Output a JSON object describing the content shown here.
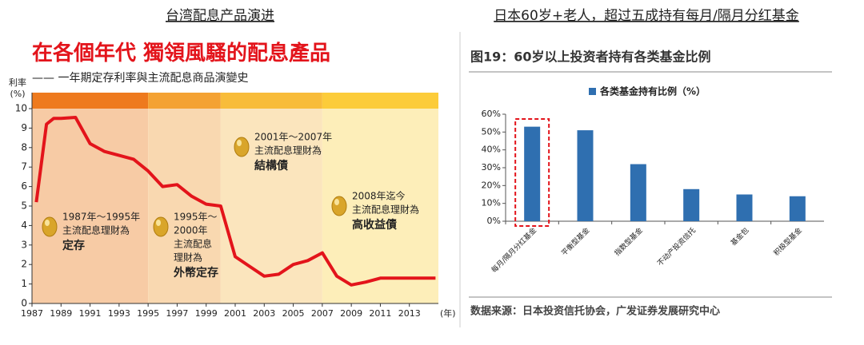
{
  "chart_data": [
    {
      "type": "line",
      "heading": "台湾配息产品演进",
      "title": "在各個年代  獨領風騷的配息產品",
      "subtitle": "—— 一年期定存利率與主流配息商品演變史",
      "ylabel": [
        "利率",
        "(%)"
      ],
      "xlabel": "(年)",
      "x": [
        1987.3,
        1988,
        1988.5,
        1989,
        1990,
        1991,
        1992,
        1993,
        1994,
        1995,
        1996,
        1997,
        1998,
        1999,
        2000,
        2001,
        2002,
        2003,
        2004,
        2005,
        2006,
        2007,
        2008,
        2009,
        2010,
        2011,
        2012,
        2013,
        2014.8
      ],
      "values": [
        5.2,
        9.2,
        9.5,
        9.5,
        9.55,
        8.2,
        7.8,
        7.6,
        7.4,
        6.8,
        6.0,
        6.1,
        5.5,
        5.1,
        5.0,
        2.4,
        1.9,
        1.4,
        1.5,
        2.0,
        2.2,
        2.6,
        1.4,
        0.95,
        1.1,
        1.3,
        1.3,
        1.3,
        1.3
      ],
      "color": "#e3141b",
      "xlim": [
        1987,
        2015
      ],
      "ylim": [
        0,
        10
      ],
      "xticks": [
        1987,
        1989,
        1991,
        1993,
        1995,
        1997,
        1999,
        2001,
        2003,
        2005,
        2007,
        2009,
        2011,
        2013
      ],
      "yticks": [
        0,
        1,
        2,
        3,
        4,
        5,
        6,
        7,
        8,
        9,
        10
      ],
      "eras": [
        {
          "start": 1987,
          "end": 1995,
          "color": "#f7cba5",
          "band_color": "#ee7a1e",
          "lines": [
            "1987年～1995年",
            "主流配息理財為",
            "定存"
          ]
        },
        {
          "start": 1995,
          "end": 2000,
          "color": "#f9d8b0",
          "band_color": "#f4a233",
          "lines": [
            "1995年～",
            "2000年",
            "主流配息",
            "理財為",
            "外幣定存"
          ]
        },
        {
          "start": 2000,
          "end": 2007,
          "color": "#fbe5bd",
          "band_color": "#f8bc3a",
          "lines": [
            "2001年～2007年",
            "主流配息理財為",
            "結構債"
          ]
        },
        {
          "start": 2007,
          "end": 2015,
          "color": "#fdeeb9",
          "band_color": "#fccc3a",
          "lines": [
            "2008年迄今",
            "主流配息理財為",
            "高收益債"
          ]
        }
      ]
    },
    {
      "type": "bar",
      "heading": "日本60岁+老人，超过五成持有每月/隔月分红基金",
      "title": "图19：60岁以上投资者持有各类基金比例",
      "categories": [
        "每月/隔月分红基金",
        "平衡型基金",
        "指数型基金",
        "不动产投资信托",
        "基金包",
        "积极型基金"
      ],
      "series": [
        {
          "name": "各类基金持有比例（%）",
          "color": "#2f6fb0",
          "values": [
            53,
            51,
            32,
            18,
            15,
            14
          ]
        }
      ],
      "ylim": [
        0,
        60
      ],
      "yticks": [
        {
          "value": 0,
          "label": "0%"
        },
        {
          "value": 10,
          "label": "10%"
        },
        {
          "value": 20,
          "label": "20%"
        },
        {
          "value": 30,
          "label": "30%"
        },
        {
          "value": 40,
          "label": "40%"
        },
        {
          "value": 50,
          "label": "50%"
        },
        {
          "value": 60,
          "label": "60%"
        }
      ],
      "highlight_index": 0,
      "source": "数据来源：日本投资信托协会，广发证券发展研究中心"
    }
  ]
}
